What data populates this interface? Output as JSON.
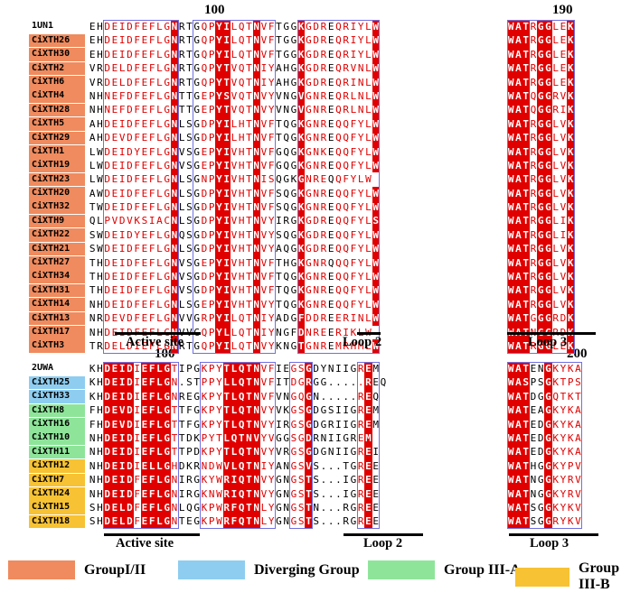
{
  "colors": {
    "group_1_2": "#ef8b5e",
    "diverging": "#8ecdf0",
    "group_3a": "#8ee59a",
    "group_3b": "#f7c233",
    "reference": "#ffffff"
  },
  "top_panel": {
    "position_main": "100",
    "position_side": "190",
    "labels": {
      "active_site": "Active site",
      "loop2": "Loop 2",
      "loop3": "Loop 3"
    },
    "rows": [
      {
        "name": "1UN1",
        "group": "reference",
        "main": "EHDEIDFEFLGNRTGQPYILQTNVFTGGKGDREQRIYLW",
        "side": "WATRGGLEK"
      },
      {
        "name": "CiXTH26",
        "group": "group_1_2",
        "main": "EHDEIDFEFLGNRTGQPYILQTNVFTGGKGDREQRIYLW",
        "side": "WATRGGLEK"
      },
      {
        "name": "CiXTH30",
        "group": "group_1_2",
        "main": "EHDEIDFEFLGNRTGQPYILQTNVFTGGKGDREQRIYLW",
        "side": "WATRGGLEK"
      },
      {
        "name": "CiXTH2",
        "group": "group_1_2",
        "main": "VRDELDFEFLGNRTGQPYTVQTNIYAHGKGDREQRVNLW",
        "side": "WATRGGLEK"
      },
      {
        "name": "CiXTH6",
        "group": "group_1_2",
        "main": "VRDELDFEFLGNRTGQPYTVQTNIYAHGKGDREQRINLW",
        "side": "WATRGGLEK"
      },
      {
        "name": "CiXTH4",
        "group": "group_1_2",
        "main": "NHNEFDFEFLGNTTGEPYSVQTNVYVNGVGNREQRLNLW",
        "side": "WATQGGRVK"
      },
      {
        "name": "CiXTH28",
        "group": "group_1_2",
        "main": "NHNEFDFEFLGNTTGEPYTVQTNVYVNGVGNREQRLNLW",
        "side": "WATQGGRIK"
      },
      {
        "name": "CiXTH5",
        "group": "group_1_2",
        "main": "AHDEIDFEFLGNLSGDPYILHTNVFTQGKGNREQQFYLW",
        "side": "WATRGGLVK"
      },
      {
        "name": "CiXTH29",
        "group": "group_1_2",
        "main": "AHDEVDFEFLGNLSGDPYILHTNVFTQGKGNREQQFYLW",
        "side": "WATRGGLVK"
      },
      {
        "name": "CiXTH1",
        "group": "group_1_2",
        "main": "LWDEIDYEFLGNVSGEPYIVHTNVFGQGKGNKEQQFYLW",
        "side": "WATRGGLVK"
      },
      {
        "name": "CiXTH19",
        "group": "group_1_2",
        "main": "LWDEIDFEFLGNVSGEPYIVHTNVFGQGKGNREQQFYLW",
        "side": "WATRGGLVK"
      },
      {
        "name": "CiXTH23",
        "group": "group_1_2",
        "main": "LWDEIDFEFLGNLSGNPYIVHTNISQGKGNREQQFYLW",
        "side": "WATRGGLVK"
      },
      {
        "name": "CiXTH20",
        "group": "group_1_2",
        "main": "AWDEIDFEFLGNLSGDPYIVHTNVFSQGKGNREQQFYLW",
        "side": "WATRGGLVK"
      },
      {
        "name": "CiXTH32",
        "group": "group_1_2",
        "main": "TWDEIDFEFLGNLSGDPYIVHTNVFSQGKGNREQQFYLW",
        "side": "WATRGGLVK"
      },
      {
        "name": "CiXTH9",
        "group": "group_1_2",
        "main": "QLPVDVKSIACNLSGDPYIVHTNVYIRGKGDREQQFYLS",
        "side": "WATRGGLIK"
      },
      {
        "name": "CiXTH22",
        "group": "group_1_2",
        "main": "SWDEIDYEFLGNQSGDPYIVHTNVYSQGKGDREQQFYLW",
        "side": "WATRGGLIK"
      },
      {
        "name": "CiXTH21",
        "group": "group_1_2",
        "main": "SWDEIDFEFLGNLSGDPYIVHTNVYAQGKGDREQQFYLW",
        "side": "WATRGGLVK"
      },
      {
        "name": "CiXTH27",
        "group": "group_1_2",
        "main": "THDEIDFEFLGNVSGEPYIVHTNVFTHGKGNRQQQFYLW",
        "side": "WATRGGLVK"
      },
      {
        "name": "CiXTH34",
        "group": "group_1_2",
        "main": "THDEIDFEFLGNVSGDPYIVHTNVFTQGKGNREQQFYLW",
        "side": "WATRGGLVK"
      },
      {
        "name": "CiXTH31",
        "group": "group_1_2",
        "main": "THDEIDFEFLGNVSGDPYIVHTNVFTQGKGNREQQFYLW",
        "side": "WATRGGLVK"
      },
      {
        "name": "CiXTH14",
        "group": "group_1_2",
        "main": "NHDEIDFEFLGNLSGEPYIVHTNVYTQGKGNREQQFYLW",
        "side": "WATRGGLVK"
      },
      {
        "name": "CiXTH13",
        "group": "group_1_2",
        "main": "NRDEVDFEFLGNVVGRPYILQTNIYADGFDDREERINLW",
        "side": "WATGGGRDK"
      },
      {
        "name": "CiXTH17",
        "group": "group_1_2",
        "main": "NHDEIDFEFLGNVVGQPYLLQTNIYNGFDNREERIKLW",
        "side": "WATNGGRDK"
      },
      {
        "name": "CiXTH3",
        "group": "group_1_2",
        "main": "TRDELDIEFLGNRTGQPYILQTNVYKNGTGNREMRHMLW",
        "side": "WATRGGLEK"
      }
    ]
  },
  "bottom_panel": {
    "position_main": "100",
    "position_side": "200",
    "labels": {
      "active_site": "Active site",
      "loop2": "Loop 2",
      "loop3": "Loop 3"
    },
    "rows": [
      {
        "name": "2UWA",
        "group": "reference",
        "main": "KHDEIDIEFLGTIPGKPYTLQTNVFIEGSGDYNIIGREM",
        "side": "WATENGKYKA"
      },
      {
        "name": "CiXTH25",
        "group": "diverging",
        "main": "KHDEIDIEFLGN.STPPYLLQTNVFITDGRGG.....REQ",
        "side": "WASPSGKTPS"
      },
      {
        "name": "CiXTH33",
        "group": "diverging",
        "main": "KHDEIDIEFLGNREGKPYTLQTNVFVNGQGN.....REQ",
        "side": "WATDGGQTKT"
      },
      {
        "name": "CiXTH8",
        "group": "group_3a",
        "main": "FHDEVDIEFLGTTFGKPYTLQTNVYVKGSGDGSIIGREM",
        "side": "WATEAGKYKA"
      },
      {
        "name": "CiXTH16",
        "group": "group_3a",
        "main": "FHDEVDIEFLGTTFGKPYTLQTNVYIRGSGDGRIIGREM",
        "side": "WATEDGKYKA"
      },
      {
        "name": "CiXTH10",
        "group": "group_3a",
        "main": "NHDEIDIEFLGTTDKPYTLQTNVYVGGSGDRNIIGREM",
        "side": "WATEDGKYKA"
      },
      {
        "name": "CiXTH11",
        "group": "group_3a",
        "main": "NHDEIDIEFLGTTPDKPYTLQTNVYVRGSGDGNIIGREI",
        "side": "WATEDGKYKA"
      },
      {
        "name": "CiXTH12",
        "group": "group_3b",
        "main": "NHDEIDIELLGHDKRNDWVLQTNIYANGSVS...TGREE",
        "side": "WATHGGKYPV"
      },
      {
        "name": "CiXTH7",
        "group": "group_3b",
        "main": "NHDEIDFEFLGNIRGKYWRIQTNVYGNGSTS...IGREE",
        "side": "WATNGGKYRV"
      },
      {
        "name": "CiXTH24",
        "group": "group_3b",
        "main": "NHDEIDFEFLGNIRGKNWRIQTNVYGNGSTS...IGREE",
        "side": "WATNGGKYRV"
      },
      {
        "name": "CiXTH15",
        "group": "group_3b",
        "main": "SHDELDFEFLGNLQGKPWRFQTNLYGNGSTN...RGREE",
        "side": "WATSGGKYKV"
      },
      {
        "name": "CiXTH18",
        "group": "group_3b",
        "main": "SHDELDFEFLGNTEGKPWRFQTNLYGNGSTS...RGREE",
        "side": "WATSGGRYKV"
      }
    ]
  },
  "legend": [
    {
      "label": "GroupI/II",
      "color": "#ef8b5e"
    },
    {
      "label": "Diverging Group",
      "color": "#8ecdf0"
    },
    {
      "label": "Group III-A",
      "color": "#8ee59a"
    },
    {
      "label": "Group III-B",
      "color": "#f7c233"
    }
  ]
}
